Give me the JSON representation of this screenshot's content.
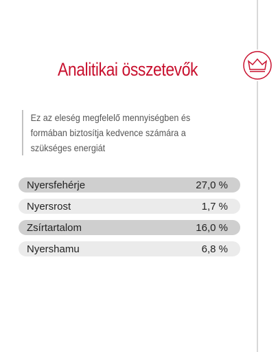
{
  "header": {
    "title": "Analitikai összetevők"
  },
  "description": "Ez az eleség megfelelő mennyiségben és formában biztosítja kedvence számára a szükséges energiát",
  "table": {
    "rows": [
      [
        "Nyersfehérje",
        "27,0 %"
      ],
      [
        "Nyersrost",
        "1,7 %"
      ],
      [
        "Zsírtartalom",
        "16,0 %"
      ],
      [
        "Nyershamu",
        "6,8 %"
      ]
    ]
  }
}
